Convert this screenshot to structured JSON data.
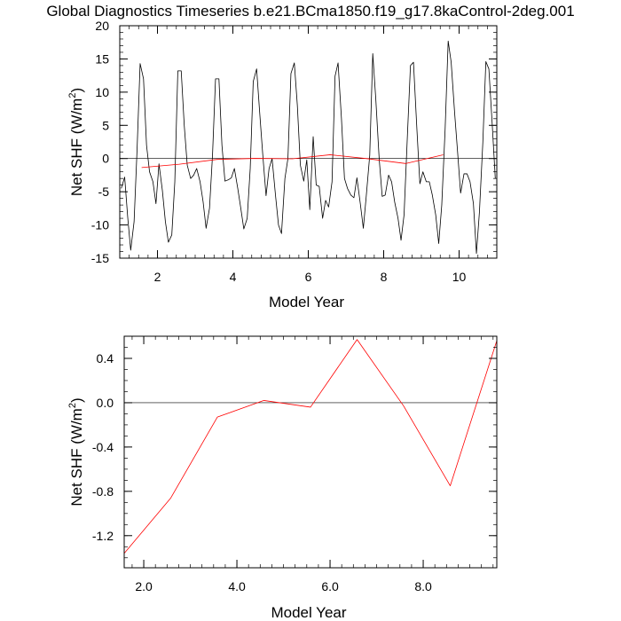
{
  "title": "Global Diagnostics Timeseries b.e21.BCma1850.f19_g17.8kaControl-2deg.001",
  "chart_data": [
    {
      "type": "line",
      "xlabel": "Model Year",
      "ylabel_main": "Net SHF (W/m",
      "ylabel_sup": "2",
      "ylabel_tail": ")",
      "xlim": [
        1.0,
        11.0
      ],
      "ylim": [
        -15,
        20
      ],
      "xticks": [
        2,
        4,
        6,
        8,
        10
      ],
      "xtick_labels": [
        "2",
        "4",
        "6",
        "8",
        "10"
      ],
      "yticks": [
        -15,
        -10,
        -5,
        0,
        5,
        10,
        15,
        20
      ],
      "ytick_labels": [
        "-15",
        "-10",
        "-5",
        "0",
        "5",
        "10",
        "15",
        "20"
      ],
      "zero_line": true,
      "series": [
        {
          "color": "#000000",
          "x": [
            1.04,
            1.13,
            1.21,
            1.29,
            1.38,
            1.46,
            1.54,
            1.63,
            1.71,
            1.79,
            1.88,
            1.96,
            2.04,
            2.13,
            2.21,
            2.29,
            2.38,
            2.46,
            2.54,
            2.63,
            2.71,
            2.79,
            2.88,
            2.96,
            3.04,
            3.13,
            3.21,
            3.29,
            3.38,
            3.46,
            3.54,
            3.63,
            3.71,
            3.79,
            3.88,
            3.96,
            4.04,
            4.13,
            4.21,
            4.29,
            4.38,
            4.46,
            4.54,
            4.63,
            4.71,
            4.79,
            4.88,
            4.96,
            5.04,
            5.13,
            5.21,
            5.29,
            5.38,
            5.46,
            5.54,
            5.63,
            5.71,
            5.79,
            5.88,
            5.96,
            6.04,
            6.13,
            6.21,
            6.29,
            6.38,
            6.46,
            6.54,
            6.63,
            6.71,
            6.79,
            6.88,
            6.96,
            7.04,
            7.13,
            7.21,
            7.29,
            7.38,
            7.46,
            7.54,
            7.63,
            7.71,
            7.79,
            7.88,
            7.96,
            8.04,
            8.13,
            8.21,
            8.29,
            8.38,
            8.46,
            8.54,
            8.63,
            8.71,
            8.79,
            8.88,
            8.96,
            9.04,
            9.13,
            9.21,
            9.29,
            9.38,
            9.46,
            9.54,
            9.63,
            9.71,
            9.79,
            9.88,
            9.96,
            10.04,
            10.13,
            10.21,
            10.29,
            10.38,
            10.46,
            10.54,
            10.63,
            10.71,
            10.79,
            10.88,
            10.96
          ],
          "y": [
            -4.5,
            -2.8,
            -8.8,
            -13.8,
            -9.5,
            1.5,
            14.3,
            12.0,
            2.0,
            -2.0,
            -3.5,
            -6.8,
            -0.8,
            -4.8,
            -9.5,
            -12.6,
            -11.5,
            -3.5,
            13.2,
            13.2,
            5.0,
            -1.0,
            -3.0,
            -2.5,
            -1.5,
            -3.5,
            -6.5,
            -10.5,
            -7.5,
            0.5,
            12.0,
            12.0,
            2.0,
            -3.4,
            -3.2,
            -2.9,
            -1.5,
            -4.5,
            -7.5,
            -10.6,
            -9.0,
            -1.5,
            11.6,
            13.5,
            7.0,
            0.8,
            -5.6,
            -1.5,
            0.0,
            -5.5,
            -10.0,
            -11.3,
            -3.0,
            0.0,
            12.8,
            14.4,
            8.0,
            -1.0,
            -3.4,
            -0.2,
            -7.7,
            3.3,
            -4.0,
            -4.2,
            -9.0,
            -6.3,
            -7.3,
            -3.5,
            12.4,
            14.4,
            6.0,
            -3.0,
            -4.5,
            -5.5,
            -5.9,
            -2.9,
            -6.8,
            -10.5,
            -5.5,
            0.5,
            15.8,
            9.0,
            0.0,
            -5.7,
            -5.5,
            -2.5,
            -3.5,
            -6.5,
            -9.0,
            -12.3,
            -8.5,
            3.6,
            14.0,
            14.5,
            4.5,
            -3.8,
            -2.0,
            -3.5,
            -3.5,
            -5.5,
            -8.5,
            -12.8,
            -7.0,
            4.5,
            17.7,
            14.5,
            7.0,
            1.0,
            -5.2,
            -2.3,
            -2.3,
            -3.5,
            -6.8,
            -14.3,
            -8.0,
            2.5,
            14.6,
            13.5,
            5.0,
            -3.0
          ]
        },
        {
          "color": "#ff0000",
          "x": [
            1.58,
            2.58,
            3.58,
            4.58,
            5.58,
            6.58,
            7.58,
            8.58,
            9.58
          ],
          "y": [
            -1.36,
            -0.86,
            -0.13,
            0.02,
            -0.04,
            0.57,
            -0.03,
            -0.75,
            0.56
          ]
        }
      ]
    },
    {
      "type": "line",
      "xlabel": "Model Year",
      "ylabel_main": "Net SHF (W/m",
      "ylabel_sup": "2",
      "ylabel_tail": ")",
      "xlim": [
        1.58,
        9.58
      ],
      "ylim": [
        -1.49,
        0.6
      ],
      "xticks": [
        2.0,
        4.0,
        6.0,
        8.0
      ],
      "xtick_labels": [
        "2.0",
        "4.0",
        "6.0",
        "8.0"
      ],
      "yticks": [
        -1.2,
        -0.8,
        -0.4,
        0.0,
        0.4
      ],
      "ytick_labels": [
        "-1.2",
        "-0.8",
        "-0.4",
        "0.0",
        "0.4"
      ],
      "zero_line": true,
      "series": [
        {
          "color": "#ff0000",
          "x": [
            1.58,
            2.58,
            3.58,
            4.58,
            5.58,
            6.58,
            7.58,
            8.58,
            9.58
          ],
          "y": [
            -1.36,
            -0.86,
            -0.13,
            0.02,
            -0.04,
            0.57,
            -0.03,
            -0.75,
            0.56
          ]
        }
      ]
    }
  ]
}
